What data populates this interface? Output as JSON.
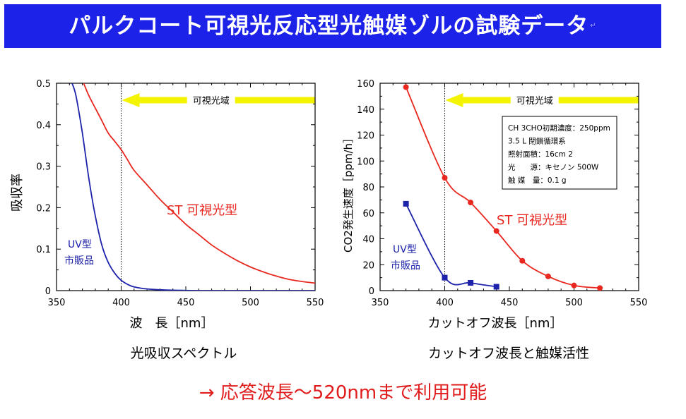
{
  "header": {
    "title": "パルクコート可視光反応型光触媒ゾルの試験データ",
    "mark": "↵"
  },
  "colors": {
    "banner": "#1d22e8",
    "st": "#e8271f",
    "uv": "#1d22aa",
    "arrow": "#f4f400",
    "conclusion": "#e01c1c"
  },
  "captions": {
    "left": "光吸収スペクトル",
    "right": "カットオフ波長と触媒活性"
  },
  "conclusion": "→ 応答波長～520nmまで利用可能",
  "chart_data": [
    {
      "type": "line",
      "xlabel": "波　長［nm］",
      "ylabel": "吸収率",
      "xlim": [
        350,
        550
      ],
      "ylim": [
        0,
        0.5
      ],
      "xticks": [
        "350",
        "400",
        "450",
        "500",
        "550"
      ],
      "yticks": [
        "0",
        "0.1",
        "0.2",
        "0.3",
        "0.4",
        "0.5"
      ],
      "grid": false,
      "annotation": {
        "text": "可視光域",
        "marker_x": 400
      },
      "series": [
        {
          "name": "ST 可視光型",
          "x": [
            371,
            375,
            380,
            385,
            390,
            395,
            400,
            405,
            410,
            420,
            430,
            440,
            450,
            460,
            470,
            480,
            490,
            500,
            510,
            520,
            530,
            540,
            550
          ],
          "y": [
            0.5,
            0.47,
            0.44,
            0.41,
            0.38,
            0.36,
            0.34,
            0.315,
            0.29,
            0.255,
            0.22,
            0.19,
            0.16,
            0.135,
            0.11,
            0.09,
            0.072,
            0.057,
            0.045,
            0.035,
            0.027,
            0.022,
            0.018
          ]
        },
        {
          "name": "UV型 市販品",
          "x": [
            362,
            365,
            370,
            375,
            380,
            385,
            390,
            395,
            400,
            405,
            410,
            420,
            430,
            440,
            460,
            480,
            500,
            520,
            550
          ],
          "y": [
            0.5,
            0.47,
            0.38,
            0.27,
            0.18,
            0.11,
            0.068,
            0.042,
            0.025,
            0.015,
            0.009,
            0.004,
            0.002,
            0.001,
            0.0,
            0.0,
            0.0,
            0.0,
            0.0
          ]
        }
      ],
      "labels": {
        "st": "ST 可視光型",
        "uv1": "UV型",
        "uv2": "市販品"
      }
    },
    {
      "type": "line",
      "xlabel": "カットオフ波長［nm］",
      "ylabel": "CO2発生速度［ppm/h］",
      "xlim": [
        350,
        550
      ],
      "ylim": [
        0,
        160
      ],
      "xticks": [
        "350",
        "400",
        "450",
        "500",
        "550"
      ],
      "yticks": [
        "0",
        "20",
        "40",
        "60",
        "80",
        "100",
        "120",
        "140",
        "160"
      ],
      "grid": false,
      "annotation": {
        "text": "可視光域",
        "marker_x": 400
      },
      "conditions": [
        "CH 3CHO初期濃度：250ppm",
        "3.5 L 閉鎖循環系",
        "照射面積：16cm 2",
        "光　　源：キセノン 500W",
        "触 媒　量：0.1 g"
      ],
      "series": [
        {
          "name": "ST 可視光型",
          "x": [
            370,
            400,
            420,
            440,
            460,
            480,
            500,
            520
          ],
          "y": [
            157,
            87,
            68,
            46,
            23,
            11,
            4,
            2
          ]
        },
        {
          "name": "UV型 市販品",
          "x": [
            370,
            400,
            420,
            440
          ],
          "y": [
            67,
            10,
            6,
            3
          ]
        }
      ],
      "labels": {
        "st": "ST 可視光型",
        "uv1": "UV型",
        "uv2": "市販品"
      }
    }
  ]
}
